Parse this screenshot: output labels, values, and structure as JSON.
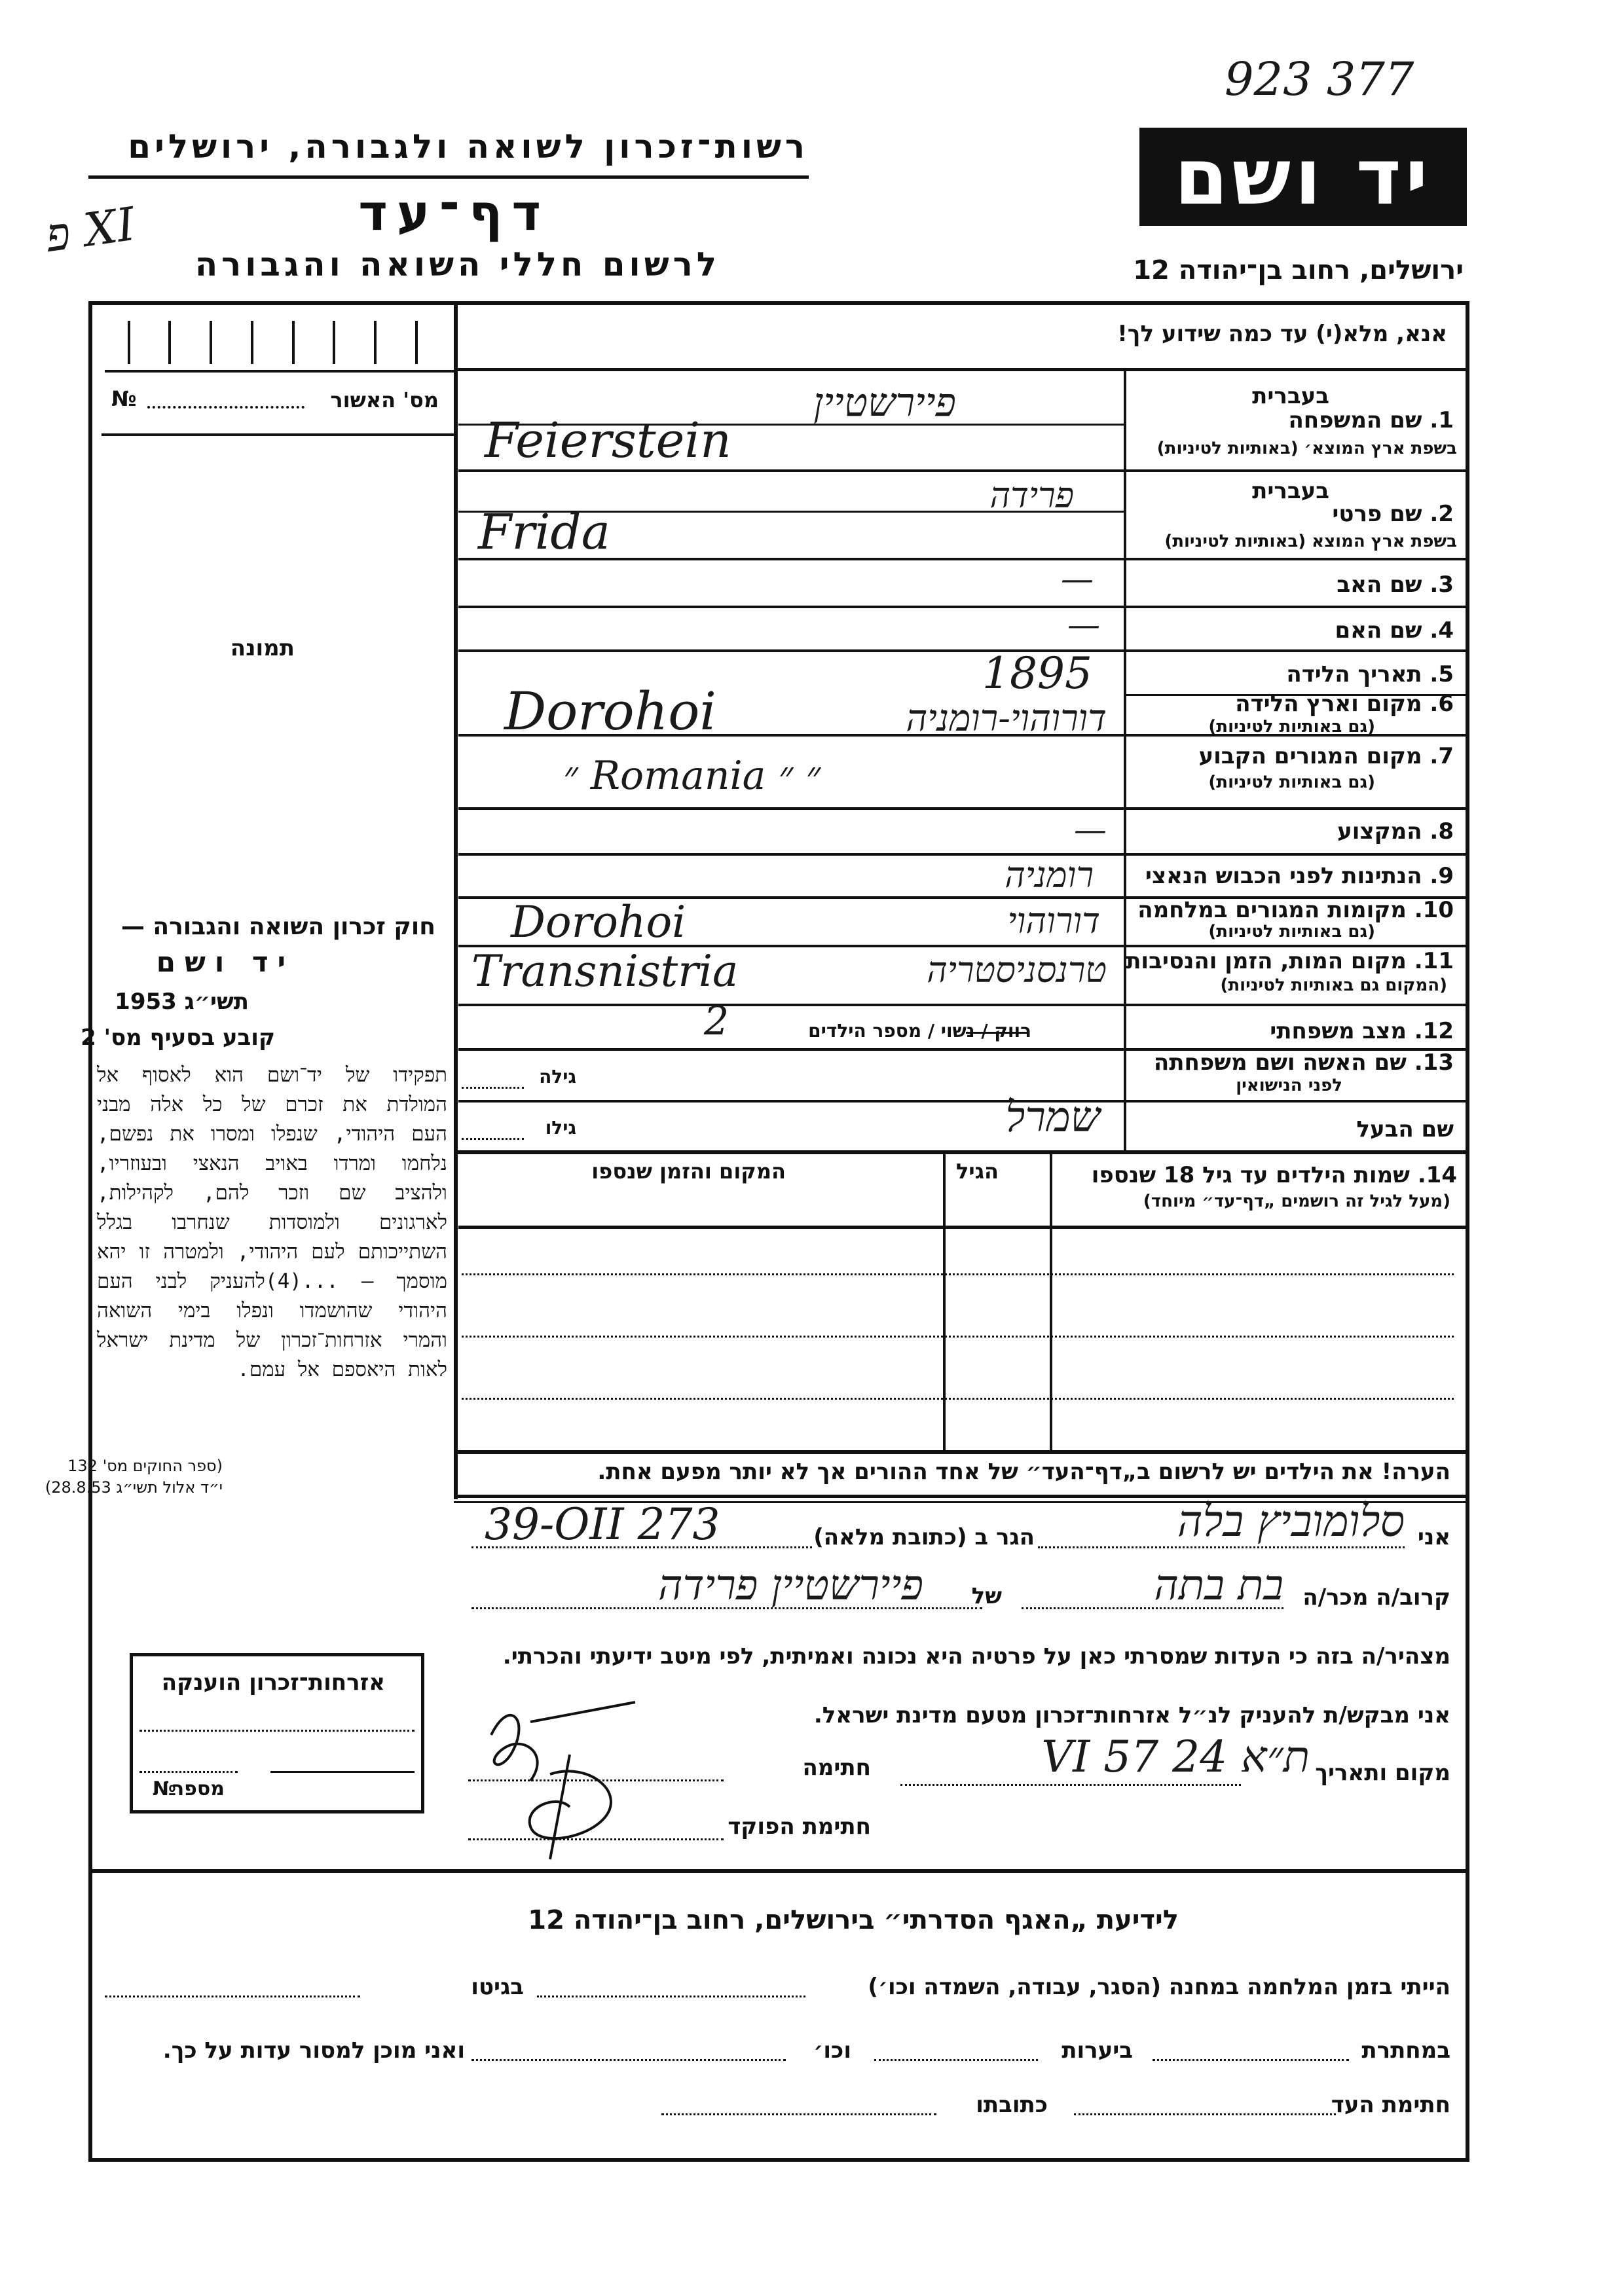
{
  "archive_number": "923 377",
  "margin_note": "פ XI",
  "header": {
    "authority": "רשות־זכרון לשואה ולגבורה, ירושלים",
    "title": "דף־עד",
    "subtitle": "לרשום חללי השואה והגבורה",
    "logo": "יד ושם",
    "address": "ירושלים, רחוב בן־יהודה 12"
  },
  "instruction": "אנא, מלא(י) עד כמה שידוע לך!",
  "left_panel": {
    "approval_label": "מס' האשור",
    "number_sign": "№",
    "photo_label": "תמונה",
    "law_heading": "חוק זכרון השואה והגבורה —",
    "law_name": "יד ושם",
    "law_year": "תשי״ג 1953",
    "law_section": "קובע בסעיף מס' 2",
    "law_text": "תפקידו של יד־ושם הוא לאסוף אל המולדת את זכרם של כל אלה מבני העם היהודי, שנפלו ומסרו את נפשם, נלחמו ומרדו באויב הנאצי ובעוזריו, ולהציב שם וזכר להם, לקהילות, לארגונים ולמוסדות שנחרבו בגלל השתייכותם לעם היהודי, ולמטרה זו יהא מוסמך — ...(4)להעניק לבני העם היהודי שהושמדו ונפלו בימי השואה והמרי אזרחות־זכרון של מדינת ישראל לאות היאספם אל עמם.",
    "law_ref1": "(ספר החוקים מס' 132",
    "law_ref2": "י״ד אלול תשי״ג 28.8.53)",
    "citizenship_box": {
      "title": "אזרחות־זכרון הוענקה",
      "number_label": "מספר",
      "number_sign": "№"
    }
  },
  "fields": {
    "in_hebrew": "בעברית",
    "f1_label": "1. שם המשפחה",
    "f1_sub": "בשפת ארץ המוצא׳ (באותיות לטיניות)",
    "f1_hebrew": "פיירשטיין",
    "f1_latin": "Feierstein",
    "f2_label": "2. שם פרטי",
    "f2_sub": "בשפת ארץ המוצא (באותיות לטיניות)",
    "f2_hebrew": "פרידה",
    "f2_latin": "Frida",
    "f3_label": "3. שם האב",
    "f3_value": "—",
    "f4_label": "4. שם האם",
    "f4_value": "—",
    "f5_label": "5. תאריך הלידה",
    "f5_value": "1895",
    "f6_label": "6. מקום וארץ הלידה",
    "f6_sub": "(גם באותיות לטיניות)",
    "f6_hebrew": "דורוהוי-רומניה",
    "f6_latin": "Dorohoi",
    "f7_label": "7. מקום המגורים הקבוע",
    "f7_sub": "(גם באותיות לטיניות)",
    "f7_value": "״ Romania ״ ״",
    "f8_label": "8. המקצוע",
    "f8_value": "—",
    "f9_label": "9. הנתינות לפני הכבוש הנאצי",
    "f9_value": "רומניה",
    "f10_label": "10. מקומות המגורים במלחמה",
    "f10_sub": "(גם באותיות לטיניות)",
    "f10_hebrew": "דורוהוי",
    "f10_latin": "Dorohoi",
    "f11_label": "11. מקום המות, הזמן והנסיבות",
    "f11_sub": "(המקום גם באותיות לטיניות)",
    "f11_hebrew": "טרנסניסטריה",
    "f11_latin": "Transnistria",
    "f12_label": "12. מצב משפחתי",
    "f12_options": "רווק / נשוי / מספר הילדים",
    "f12_value": "2",
    "f13_label": "13. שם האשה ושם משפחתה",
    "f13_sub": "לפני הנישואין",
    "her_age_label": "גילה",
    "husband_label": "שם הבעל",
    "husband_value": "שמרל",
    "his_age_label": "גילו"
  },
  "children": {
    "label": "14. שמות הילדים עד גיל 18 שנספו",
    "sub": "(מעל לגיל זה רושמים „דף־עד״ מיוחד)",
    "age_header": "הגיל",
    "place_header": "המקום והזמן שנספו",
    "note": "הערה! את הילדים יש לרשום ב„דף־העד״ של אחד ההורים אך לא יותר מפעם אחת."
  },
  "declaration": {
    "i_label": "אני",
    "witness_name": "סלומוביץ בלה",
    "lives_label": "הגר ב (כתובת מלאה)",
    "address": "39-ОII 273",
    "relative_label": "קרוב/ה מכר/ה",
    "relation": "בת בתה",
    "of_label": "של",
    "of_name": "פיירשטיין פרידה",
    "statement": "מצהיר/ה בזה כי העדות שמסרתי כאן על פרטיה היא נכונה ואמיתית, לפי מיטב ידיעתי והכרתי.",
    "request": "אני מבקש/ת להעניק לנ״ל אזרחות־זכרון מטעם מדינת ישראל.",
    "place_date_label": "מקום ותאריך",
    "place_date": "ת״א 24 VI 57",
    "signature_label": "חתימה",
    "officer_label": "חתימת הפוקד"
  },
  "bottom": {
    "title": "לידיעת „האגף הסדרתי״ בירושלים, רחוב בן־יהודה 12",
    "camp_text": "הייתי בזמן המלחמה במחנה (הסגר, עבודה, השמדה וכו׳)",
    "ghetto": "בגיטו",
    "underground": "במחתרת",
    "forests": "ביערות",
    "etc": "וכו׳",
    "ready": "ואני מוכן למסור עדות על כך.",
    "witness_sig": "חתימת העד",
    "address_label": "כתובתו"
  }
}
